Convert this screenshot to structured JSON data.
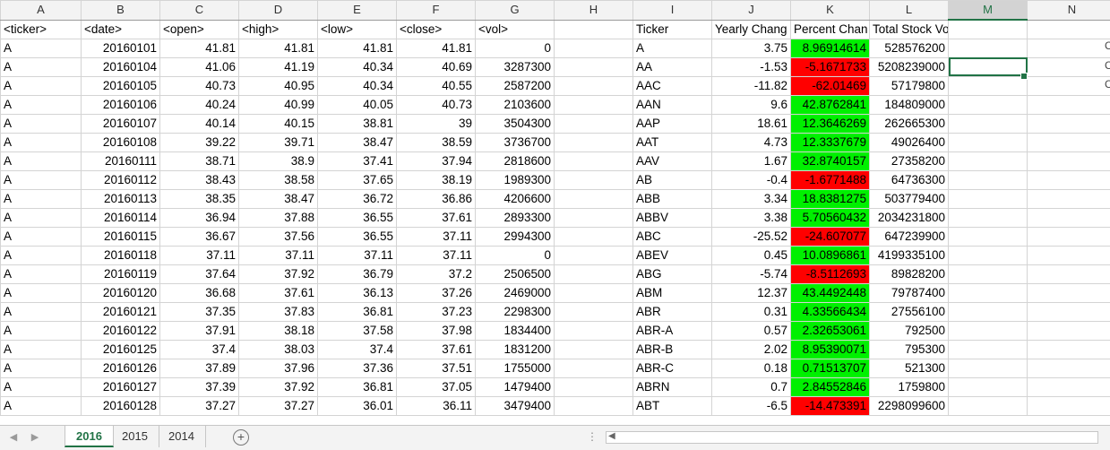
{
  "columns": [
    "A",
    "B",
    "C",
    "D",
    "E",
    "F",
    "G",
    "H",
    "I",
    "J",
    "K",
    "L",
    "M",
    "N"
  ],
  "selected_column": "M",
  "rows": [
    [
      "<ticker>",
      "<date>",
      "<open>",
      "<high>",
      "<low>",
      "<close>",
      "<vol>",
      "",
      "Ticker",
      "Yearly Chang",
      "Percent Chan",
      "Total Stock Volume",
      "",
      ""
    ],
    [
      "A",
      "20160101",
      "41.81",
      "41.81",
      "41.81",
      "41.81",
      "0",
      "",
      "A",
      "3.75",
      "8.96914614",
      "528576200",
      "",
      ""
    ],
    [
      "A",
      "20160104",
      "41.06",
      "41.19",
      "40.34",
      "40.69",
      "3287300",
      "",
      "AA",
      "-1.53",
      "-5.1671733",
      "5208239000",
      "",
      ""
    ],
    [
      "A",
      "20160105",
      "40.73",
      "40.95",
      "40.34",
      "40.55",
      "2587200",
      "",
      "AAC",
      "-11.82",
      "-62.01469",
      "57179800",
      "",
      ""
    ],
    [
      "A",
      "20160106",
      "40.24",
      "40.99",
      "40.05",
      "40.73",
      "2103600",
      "",
      "AAN",
      "9.6",
      "42.8762841",
      "184809000",
      "",
      ""
    ],
    [
      "A",
      "20160107",
      "40.14",
      "40.15",
      "38.81",
      "39",
      "3504300",
      "",
      "AAP",
      "18.61",
      "12.3646269",
      "262665300",
      "",
      ""
    ],
    [
      "A",
      "20160108",
      "39.22",
      "39.71",
      "38.47",
      "38.59",
      "3736700",
      "",
      "AAT",
      "4.73",
      "12.3337679",
      "49026400",
      "",
      ""
    ],
    [
      "A",
      "20160111",
      "38.71",
      "38.9",
      "37.41",
      "37.94",
      "2818600",
      "",
      "AAV",
      "1.67",
      "32.8740157",
      "27358200",
      "",
      ""
    ],
    [
      "A",
      "20160112",
      "38.43",
      "38.58",
      "37.65",
      "38.19",
      "1989300",
      "",
      "AB",
      "-0.4",
      "-1.6771488",
      "64736300",
      "",
      ""
    ],
    [
      "A",
      "20160113",
      "38.35",
      "38.47",
      "36.72",
      "36.86",
      "4206600",
      "",
      "ABB",
      "3.34",
      "18.8381275",
      "503779400",
      "",
      ""
    ],
    [
      "A",
      "20160114",
      "36.94",
      "37.88",
      "36.55",
      "37.61",
      "2893300",
      "",
      "ABBV",
      "3.38",
      "5.70560432",
      "2034231800",
      "",
      ""
    ],
    [
      "A",
      "20160115",
      "36.67",
      "37.56",
      "36.55",
      "37.11",
      "2994300",
      "",
      "ABC",
      "-25.52",
      "-24.607077",
      "647239900",
      "",
      ""
    ],
    [
      "A",
      "20160118",
      "37.11",
      "37.11",
      "37.11",
      "37.11",
      "0",
      "",
      "ABEV",
      "0.45",
      "10.0896861",
      "4199335100",
      "",
      ""
    ],
    [
      "A",
      "20160119",
      "37.64",
      "37.92",
      "36.79",
      "37.2",
      "2506500",
      "",
      "ABG",
      "-5.74",
      "-8.5112693",
      "89828200",
      "",
      ""
    ],
    [
      "A",
      "20160120",
      "36.68",
      "37.61",
      "36.13",
      "37.26",
      "2469000",
      "",
      "ABM",
      "12.37",
      "43.4492448",
      "79787400",
      "",
      ""
    ],
    [
      "A",
      "20160121",
      "37.35",
      "37.83",
      "36.81",
      "37.23",
      "2298300",
      "",
      "ABR",
      "0.31",
      "4.33566434",
      "27556100",
      "",
      ""
    ],
    [
      "A",
      "20160122",
      "37.91",
      "38.18",
      "37.58",
      "37.98",
      "1834400",
      "",
      "ABR-A",
      "0.57",
      "2.32653061",
      "792500",
      "",
      ""
    ],
    [
      "A",
      "20160125",
      "37.4",
      "38.03",
      "37.4",
      "37.61",
      "1831200",
      "",
      "ABR-B",
      "2.02",
      "8.95390071",
      "795300",
      "",
      ""
    ],
    [
      "A",
      "20160126",
      "37.89",
      "37.96",
      "37.36",
      "37.51",
      "1755000",
      "",
      "ABR-C",
      "0.18",
      "0.71513707",
      "521300",
      "",
      ""
    ],
    [
      "A",
      "20160127",
      "37.39",
      "37.92",
      "36.81",
      "37.05",
      "1479400",
      "",
      "ABRN",
      "0.7",
      "2.84552846",
      "1759800",
      "",
      ""
    ],
    [
      "A",
      "20160128",
      "37.27",
      "37.27",
      "36.01",
      "36.11",
      "3479400",
      "",
      "ABT",
      "-6.5",
      "-14.473391",
      "2298099600",
      "",
      ""
    ]
  ],
  "colors": {
    "positive": "#00f000",
    "negative": "#ff0000",
    "accent": "#217346"
  },
  "sheets": [
    "2016",
    "2015",
    "2014"
  ],
  "active_sheet": "2016",
  "nav_icons": [
    "scroll-left-icon",
    "scroll-right-icon"
  ],
  "add_sheet_icon": "plus-circle-icon"
}
